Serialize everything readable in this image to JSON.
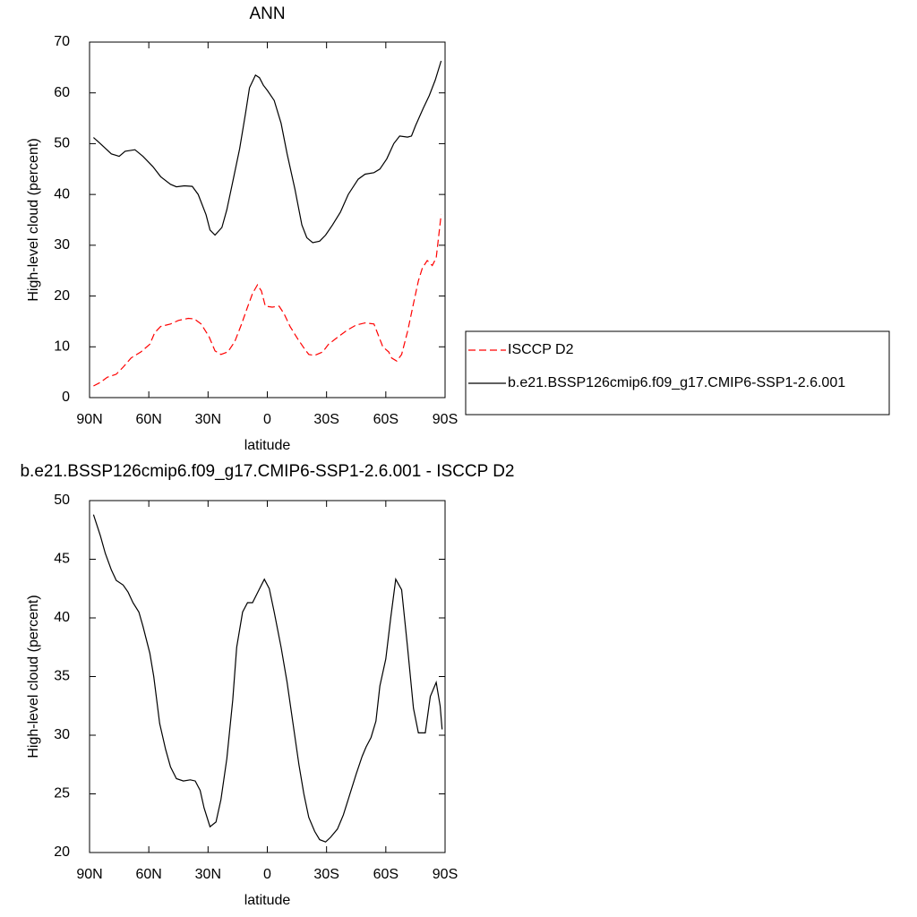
{
  "chart_data": [
    {
      "type": "line",
      "title": "ANN",
      "xlabel": "latitude",
      "ylabel": "High-level cloud (percent)",
      "xlim": [
        90,
        -90
      ],
      "xticks": [
        {
          "value": 90,
          "label": "90N"
        },
        {
          "value": 60,
          "label": "60N"
        },
        {
          "value": 30,
          "label": "30N"
        },
        0,
        {
          "value": -30,
          "label": "30S"
        },
        {
          "value": -60,
          "label": "60S"
        },
        {
          "value": -90,
          "label": "90S"
        }
      ],
      "ylim": [
        0,
        70
      ],
      "yticks": [
        0,
        10,
        20,
        30,
        40,
        50,
        60,
        70
      ],
      "legend": "right",
      "series": [
        {
          "name": "ISCCP D2",
          "color": "#ff0000",
          "dashed": true,
          "x": [
            88,
            84.5,
            81,
            76.5,
            73,
            69,
            64,
            59.5,
            57,
            54,
            49,
            45,
            40,
            37,
            33.5,
            29.5,
            26.5,
            23.5,
            20,
            16.5,
            13,
            10,
            7.5,
            5,
            3,
            1,
            -2.5,
            -6,
            -8.5,
            -11.5,
            -15.5,
            -19,
            -21,
            -24,
            -28,
            -31,
            -36,
            -40.5,
            -45,
            -49.5,
            -54,
            -56,
            -58.5,
            -61.5,
            -63,
            -65.5,
            -68,
            -71,
            -74,
            -76.5,
            -78.5,
            -81,
            -83.5,
            -85.5,
            -88
          ],
          "values": [
            2.3,
            3,
            4,
            4.6,
            6,
            7.8,
            9,
            10.5,
            12.8,
            14,
            14.5,
            15.2,
            15.6,
            15.5,
            14.5,
            12,
            9.2,
            8.5,
            9,
            11,
            14.5,
            17.8,
            20.5,
            22.2,
            21,
            18,
            17.8,
            18,
            16.5,
            14,
            11.5,
            9.5,
            8.5,
            8.3,
            9,
            10.5,
            12,
            13.3,
            14.3,
            14.7,
            14.5,
            12.5,
            10,
            9,
            7.8,
            7.2,
            8.5,
            13,
            18.5,
            23,
            25.5,
            27,
            26,
            27.5,
            36
          ]
        },
        {
          "name": "b.e21.BSSP126cmip6.f09_g17.CMIP6-SSP1-2.6.001",
          "color": "#000000",
          "dashed": false,
          "x": [
            88,
            84.5,
            79,
            75,
            72,
            67,
            63,
            58,
            54,
            49,
            46,
            42,
            38,
            35,
            31,
            29,
            26.5,
            23,
            20.5,
            17.5,
            14,
            11,
            9,
            6,
            4,
            2,
            0,
            -3.5,
            -7,
            -10,
            -14,
            -17.5,
            -20,
            -23,
            -26.5,
            -29.5,
            -33,
            -37,
            -41,
            -46,
            -49.5,
            -54,
            -57,
            -60.5,
            -64,
            -67,
            -71,
            -73,
            -75,
            -79,
            -82,
            -85,
            -88
          ],
          "values": [
            51.2,
            50,
            48,
            47.5,
            48.5,
            48.8,
            47.5,
            45.5,
            43.5,
            42,
            41.5,
            41.7,
            41.6,
            40,
            36,
            33,
            32,
            33.5,
            37,
            42.5,
            49,
            56,
            61,
            63.5,
            63,
            61.5,
            60.5,
            58.5,
            54,
            48,
            41,
            34,
            31.5,
            30.5,
            30.8,
            32,
            34,
            36.5,
            40,
            43,
            44,
            44.3,
            45,
            47,
            50,
            51.5,
            51.3,
            51.5,
            53.5,
            57,
            59.5,
            62.5,
            66.3
          ]
        }
      ]
    },
    {
      "type": "line",
      "title": "b.e21.BSSP126cmip6.f09_g17.CMIP6-SSP1-2.6.001 - ISCCP D2",
      "xlabel": "latitude",
      "ylabel": "High-level cloud (percent)",
      "xlim": [
        90,
        -90
      ],
      "xticks": [
        {
          "value": 90,
          "label": "90N"
        },
        {
          "value": 60,
          "label": "60N"
        },
        {
          "value": 30,
          "label": "30N"
        },
        0,
        {
          "value": -30,
          "label": "30S"
        },
        {
          "value": -60,
          "label": "60S"
        },
        {
          "value": -90,
          "label": "90S"
        }
      ],
      "ylim": [
        20,
        50
      ],
      "yticks": [
        20,
        25,
        30,
        35,
        40,
        45,
        50
      ],
      "series": [
        {
          "color": "#000000",
          "dashed": false,
          "x": [
            88,
            84.5,
            82,
            79,
            76.5,
            73,
            70.5,
            68,
            65,
            63,
            59.5,
            57.5,
            54.5,
            51.5,
            49,
            46,
            42.5,
            39,
            36.5,
            34,
            32,
            29,
            26,
            23.5,
            20.5,
            17.5,
            15.5,
            12.5,
            10,
            7.5,
            4.5,
            1.5,
            -1,
            -3.5,
            -7,
            -10,
            -13,
            -16,
            -18.5,
            -21,
            -24,
            -26.5,
            -29.5,
            -32,
            -35.5,
            -38.5,
            -41.5,
            -45,
            -48,
            -50,
            -52.5,
            -55,
            -57,
            -60,
            -62.5,
            -65,
            -68,
            -71,
            -74,
            -76.5,
            -80,
            -82.5,
            -85.5,
            -87.5,
            -88.5
          ],
          "values": [
            48.8,
            47,
            45.5,
            44.1,
            43.2,
            42.8,
            42.2,
            41.3,
            40.5,
            39.3,
            37,
            35,
            31,
            28.8,
            27.3,
            26.3,
            26.1,
            26.2,
            26.1,
            25.3,
            23.8,
            22.2,
            22.6,
            24.5,
            28,
            33,
            37.5,
            40.5,
            41.3,
            41.3,
            42.3,
            43.3,
            42.5,
            40.5,
            37.5,
            34.5,
            31,
            27.5,
            25,
            23,
            21.8,
            21.1,
            20.9,
            21.3,
            22,
            23.2,
            24.8,
            26.7,
            28.2,
            29,
            29.8,
            31.2,
            34.2,
            36.5,
            40,
            43.3,
            42.4,
            37.5,
            32.3,
            30.2,
            30.2,
            33.3,
            34.5,
            32.5,
            30.5
          ]
        }
      ]
    }
  ]
}
